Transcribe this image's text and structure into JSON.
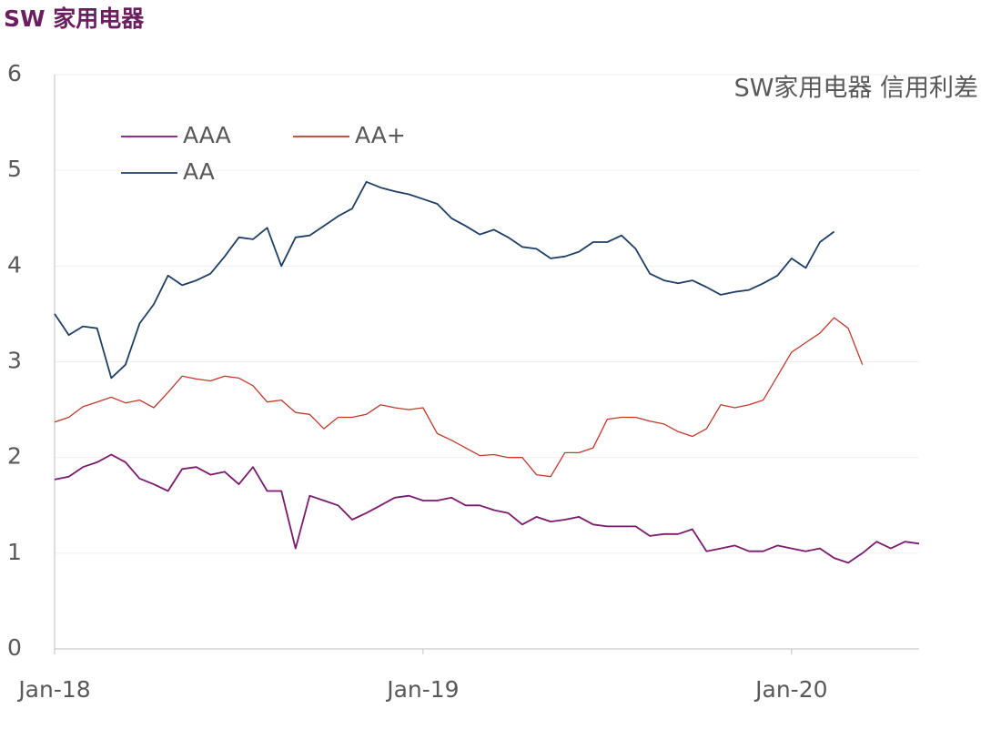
{
  "chart_data": {
    "type": "line",
    "title": "SW 家用电器",
    "subtitle": "SW家用电器 信用利差",
    "categories": [
      "Jan-18",
      null,
      null,
      null,
      null,
      null,
      null,
      null,
      null,
      null,
      null,
      null,
      null,
      null,
      null,
      null,
      null,
      null,
      null,
      null,
      null,
      null,
      null,
      null,
      null,
      null,
      "Jan-19",
      null,
      null,
      null,
      null,
      null,
      null,
      null,
      null,
      null,
      null,
      null,
      null,
      null,
      null,
      null,
      null,
      null,
      null,
      null,
      null,
      null,
      null,
      null,
      null,
      null,
      "Jan-20",
      null,
      null,
      null,
      null,
      null,
      null,
      null,
      null,
      null
    ],
    "series": [
      {
        "name": "AAA",
        "color": "#7b1a6e",
        "values": [
          1.77,
          1.8,
          1.9,
          1.95,
          2.03,
          1.95,
          1.78,
          1.72,
          1.65,
          1.88,
          1.9,
          1.82,
          1.85,
          1.72,
          1.9,
          1.65,
          1.65,
          1.05,
          1.6,
          1.55,
          1.5,
          1.35,
          1.42,
          1.5,
          1.58,
          1.6,
          1.55,
          1.55,
          1.58,
          1.5,
          1.5,
          1.45,
          1.42,
          1.3,
          1.38,
          1.33,
          1.35,
          1.38,
          1.3,
          1.28,
          1.28,
          1.28,
          1.18,
          1.2,
          1.2,
          1.25,
          1.02,
          1.05,
          1.08,
          1.02,
          1.02,
          1.08,
          1.05,
          1.02,
          1.05,
          0.95,
          0.9,
          1.0,
          1.12,
          1.05,
          1.12,
          1.1
        ]
      },
      {
        "name": "AA+",
        "color": "#c0392b",
        "values": [
          2.37,
          2.42,
          2.53,
          2.58,
          2.63,
          2.57,
          2.6,
          2.52,
          2.68,
          2.85,
          2.82,
          2.8,
          2.85,
          2.83,
          2.75,
          2.58,
          2.6,
          2.47,
          2.45,
          2.3,
          2.42,
          2.42,
          2.45,
          2.55,
          2.52,
          2.5,
          2.52,
          2.25,
          2.18,
          2.1,
          2.02,
          2.03,
          2.0,
          2.0,
          1.82,
          1.8,
          2.05,
          2.05,
          2.1,
          2.4,
          2.42,
          2.42,
          2.38,
          2.35,
          2.27,
          2.22,
          2.3,
          2.55,
          2.52,
          2.55,
          2.6,
          2.85,
          3.1,
          3.2,
          3.3,
          3.46,
          3.35,
          2.97,
          null,
          null,
          null,
          null
        ]
      },
      {
        "name": "AA",
        "color": "#1f3f66",
        "values": [
          3.5,
          3.28,
          3.37,
          3.35,
          2.83,
          2.97,
          3.4,
          3.6,
          3.9,
          3.8,
          3.85,
          3.92,
          4.1,
          4.3,
          4.28,
          4.4,
          4.0,
          4.3,
          4.32,
          4.42,
          4.52,
          4.6,
          4.88,
          4.82,
          4.78,
          4.75,
          4.7,
          4.65,
          4.5,
          4.42,
          4.33,
          4.38,
          4.3,
          4.2,
          4.18,
          4.08,
          4.1,
          4.15,
          4.25,
          4.25,
          4.32,
          4.18,
          3.92,
          3.85,
          3.82,
          3.85,
          3.78,
          3.7,
          3.73,
          3.75,
          3.82,
          3.9,
          4.08,
          3.98,
          4.25,
          4.36,
          null,
          null,
          null,
          null,
          null,
          null
        ]
      }
    ],
    "ylim": [
      0,
      6
    ],
    "yticks": [
      0,
      1,
      2,
      3,
      4,
      5,
      6
    ],
    "grid": true,
    "legend": "upper left"
  }
}
